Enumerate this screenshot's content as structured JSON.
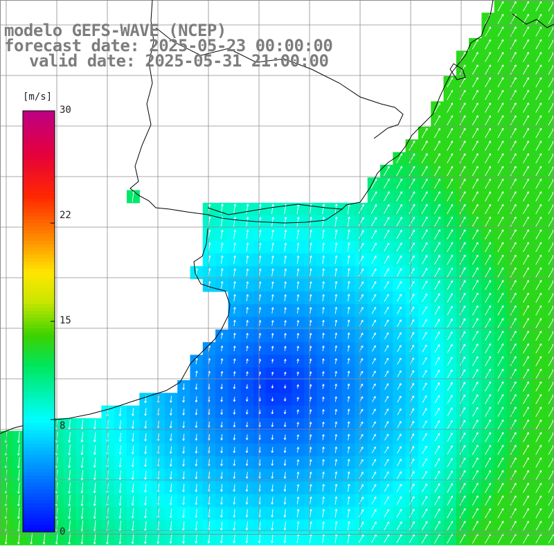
{
  "title": {
    "line1": "modelo GEFS-WAVE (NCEP)",
    "line2": "forecast date: 2025-05-23 00:00:00",
    "line3": "valid date: 2025-05-31 21:00:00"
  },
  "colorbar": {
    "unit": "[m/s]",
    "min": 0,
    "max": 30,
    "ticks": [
      "30",
      "22",
      "15",
      "8",
      "0"
    ],
    "tick_values": [
      30,
      22,
      15,
      8,
      0
    ]
  },
  "colors": {
    "land": "#ffffff",
    "grid": "#8c8c8c",
    "coast": "#000000",
    "arrow": "#ffffff",
    "title": "#7d7d7d"
  }
}
